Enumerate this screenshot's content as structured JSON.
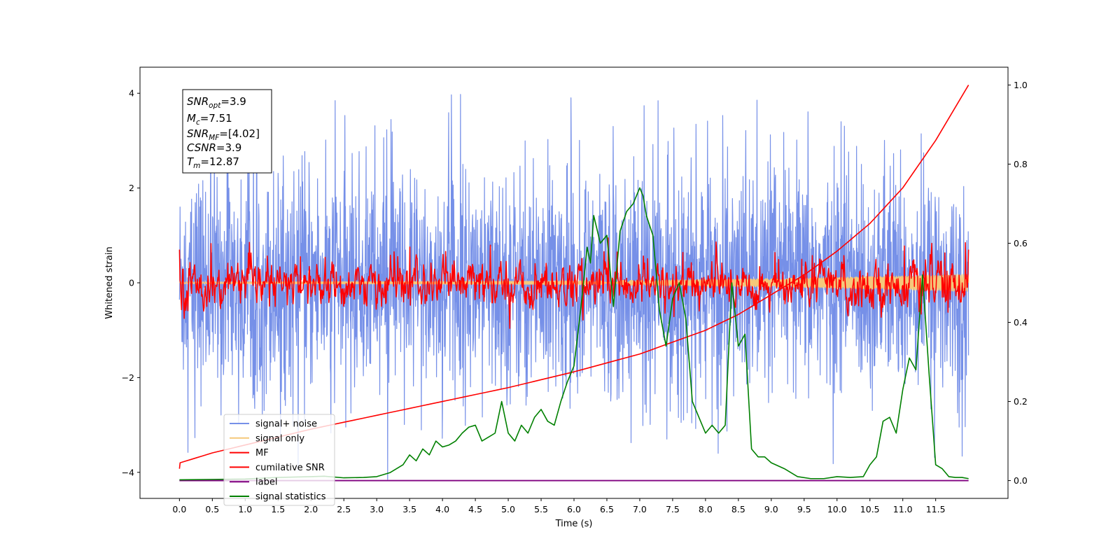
{
  "chart_data": {
    "type": "line",
    "xlabel": "Time (s)",
    "ylabel": "Whitened strain",
    "xlim": [
      -0.6,
      12.6
    ],
    "ylim": [
      -4.55,
      4.55
    ],
    "y2lim": [
      -0.045,
      1.045
    ],
    "x_ticks": [
      "0.0",
      "0.5",
      "1.0",
      "1.5",
      "2.0",
      "2.5",
      "3.0",
      "3.5",
      "4.0",
      "4.5",
      "5.0",
      "5.5",
      "6.0",
      "6.5",
      "7.0",
      "7.5",
      "8.0",
      "8.5",
      "9.0",
      "9.5",
      "10.0",
      "10.5",
      "11.0",
      "11.5"
    ],
    "y_ticks": [
      "4",
      "2",
      "0",
      "−2",
      "−4"
    ],
    "y2_ticks": [
      "1.0",
      "0.8",
      "0.6",
      "0.4",
      "0.2",
      "0.0"
    ],
    "grid": false,
    "legend_position": "lower-left",
    "info_box": {
      "snr_opt": {
        "main": "SNR",
        "sub": "opt",
        "value": "=3.9"
      },
      "mc": {
        "main": "M",
        "sub": "c",
        "value": "=7.51"
      },
      "snr_mf": {
        "main": "SNR",
        "sub": "MF",
        "value": "=[4.02]"
      },
      "csnr": {
        "main": "CSNR",
        "sub": "",
        "value": "=3.9"
      },
      "tm": {
        "main": "T",
        "sub": "m",
        "value": "=12.87"
      }
    },
    "series": [
      {
        "name": "signal+ noise",
        "color": "#7690e8",
        "axis": "left",
        "kind": "noise",
        "amplitude_std": 1.15,
        "x_range": [
          0,
          12.0
        ],
        "spike_max": 4.15
      },
      {
        "name": "signal only",
        "color": "#f5c87a",
        "axis": "left",
        "kind": "chirp",
        "amplitude_start": 0.02,
        "amplitude_end": 0.18,
        "x_range": [
          0,
          12.0
        ]
      },
      {
        "name": "MF",
        "color": "#ff0000",
        "axis": "left",
        "kind": "noise",
        "amplitude_std": 0.2,
        "x_range": [
          0,
          12.0
        ],
        "start_value": 0.7,
        "end_value": 0.7
      },
      {
        "name": "cumilative SNR",
        "color": "#ff0000",
        "axis": "right",
        "kind": "curve",
        "x": [
          0,
          0.01,
          0.5,
          1.0,
          2.0,
          3.0,
          4.0,
          5.0,
          6.0,
          7.0,
          8.0,
          8.5,
          9.0,
          9.5,
          10.0,
          10.5,
          11.0,
          11.5,
          12.0
        ],
        "y": [
          0.03,
          0.045,
          0.07,
          0.09,
          0.13,
          0.165,
          0.2,
          0.235,
          0.275,
          0.32,
          0.38,
          0.42,
          0.47,
          0.52,
          0.58,
          0.65,
          0.74,
          0.86,
          1.0
        ]
      },
      {
        "name": "label",
        "color": "#800080",
        "axis": "right",
        "kind": "flat",
        "x": [
          0,
          12.0
        ],
        "y": [
          0.0,
          0.0
        ]
      },
      {
        "name": "signal statistics",
        "color": "#008000",
        "axis": "right",
        "kind": "curve",
        "x": [
          0,
          0.5,
          1.0,
          1.5,
          2.0,
          2.2,
          2.5,
          2.8,
          3.0,
          3.2,
          3.4,
          3.5,
          3.6,
          3.7,
          3.8,
          3.9,
          4.0,
          4.1,
          4.2,
          4.3,
          4.4,
          4.5,
          4.6,
          4.7,
          4.8,
          4.9,
          5.0,
          5.1,
          5.2,
          5.3,
          5.4,
          5.5,
          5.6,
          5.7,
          5.8,
          5.9,
          6.0,
          6.1,
          6.2,
          6.25,
          6.3,
          6.4,
          6.5,
          6.6,
          6.7,
          6.8,
          6.9,
          7.0,
          7.05,
          7.1,
          7.2,
          7.3,
          7.4,
          7.5,
          7.6,
          7.7,
          7.8,
          7.9,
          8.0,
          8.1,
          8.2,
          8.3,
          8.4,
          8.5,
          8.6,
          8.7,
          8.8,
          8.9,
          9.0,
          9.2,
          9.4,
          9.6,
          9.8,
          10.0,
          10.2,
          10.4,
          10.5,
          10.6,
          10.7,
          10.8,
          10.9,
          11.0,
          11.1,
          11.2,
          11.3,
          11.4,
          11.5,
          11.6,
          11.7,
          11.8,
          11.9,
          12.0
        ],
        "y": [
          0.002,
          0.003,
          0.004,
          0.008,
          0.01,
          0.011,
          0.007,
          0.008,
          0.01,
          0.02,
          0.04,
          0.065,
          0.05,
          0.08,
          0.065,
          0.1,
          0.085,
          0.09,
          0.1,
          0.12,
          0.135,
          0.14,
          0.1,
          0.11,
          0.12,
          0.2,
          0.12,
          0.1,
          0.14,
          0.12,
          0.16,
          0.18,
          0.15,
          0.14,
          0.2,
          0.25,
          0.29,
          0.43,
          0.59,
          0.55,
          0.67,
          0.6,
          0.62,
          0.44,
          0.63,
          0.68,
          0.7,
          0.74,
          0.72,
          0.67,
          0.62,
          0.43,
          0.34,
          0.46,
          0.5,
          0.41,
          0.2,
          0.16,
          0.12,
          0.14,
          0.12,
          0.14,
          0.5,
          0.34,
          0.37,
          0.08,
          0.06,
          0.06,
          0.045,
          0.03,
          0.01,
          0.005,
          0.005,
          0.01,
          0.008,
          0.01,
          0.04,
          0.06,
          0.15,
          0.16,
          0.12,
          0.23,
          0.31,
          0.28,
          0.52,
          0.27,
          0.04,
          0.03,
          0.01,
          0.008,
          0.008,
          0.005
        ]
      }
    ]
  }
}
